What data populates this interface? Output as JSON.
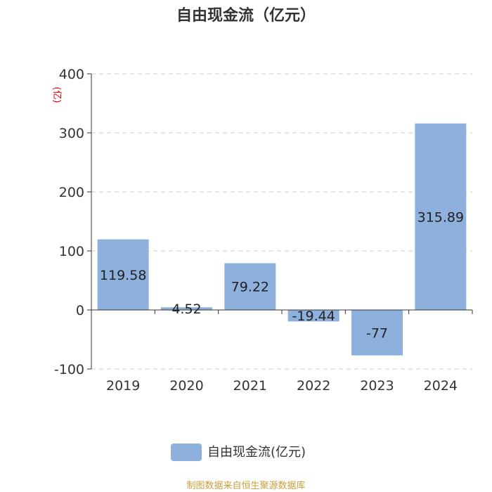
{
  "chart_data": {
    "type": "bar",
    "title": "自由现金流（亿元）",
    "ylabel": "(亿)",
    "xlabel": "",
    "categories": [
      "2019",
      "2020",
      "2021",
      "2022",
      "2023",
      "2024"
    ],
    "series": [
      {
        "name": "自由现金流(亿元)",
        "values": [
          119.58,
          4.52,
          79.22,
          -19.44,
          -77,
          315.89
        ],
        "labels": [
          "119.58",
          "4.52",
          "79.22",
          "-19.44",
          "-77",
          "315.89"
        ],
        "color": "#8eb0dc"
      }
    ],
    "ylim": [
      -100,
      400
    ],
    "yticks": [
      -100,
      0,
      100,
      200,
      300,
      400
    ],
    "grid": true,
    "legend_position": "bottom-center"
  },
  "source": "制图数据来自恒生聚源数据库"
}
